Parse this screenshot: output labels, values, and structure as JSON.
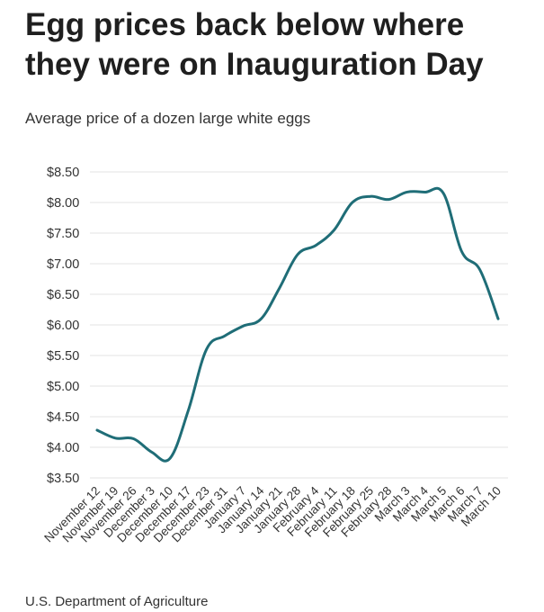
{
  "header": {
    "title": "Egg prices back below where they were on Inauguration Day",
    "subtitle": "Average price of a dozen large white eggs"
  },
  "footer": {
    "source": "U.S. Department of Agriculture"
  },
  "colors": {
    "line": "#1f6d77",
    "grid": "#e3e3e3",
    "text": "#333333"
  },
  "chart_data": {
    "type": "line",
    "title": "Egg prices back below where they were on Inauguration Day",
    "subtitle": "Average price of a dozen large white eggs",
    "xlabel": "",
    "ylabel": "",
    "ylim": [
      3.5,
      8.5
    ],
    "yticks": [
      3.5,
      4.0,
      4.5,
      5.0,
      5.5,
      6.0,
      6.5,
      7.0,
      7.5,
      8.0,
      8.5
    ],
    "ytick_labels": [
      "$3.50",
      "$4.00",
      "$4.50",
      "$5.00",
      "$5.50",
      "$6.00",
      "$6.50",
      "$7.00",
      "$7.50",
      "$8.00",
      "$8.50"
    ],
    "grid": true,
    "categories": [
      "November 12",
      "November 19",
      "November 26",
      "December 3",
      "December 10",
      "December 17",
      "December 23",
      "December 31",
      "January 7",
      "January 14",
      "January 21",
      "January 28",
      "February 4",
      "February 11",
      "February 18",
      "February 25",
      "February 28",
      "March 3",
      "March 4",
      "March 5",
      "March 6",
      "March 7",
      "March 10"
    ],
    "series": [
      {
        "name": "Average price",
        "values": [
          4.28,
          4.15,
          4.14,
          3.92,
          3.82,
          4.6,
          5.6,
          5.82,
          5.98,
          6.1,
          6.6,
          7.15,
          7.3,
          7.55,
          8.0,
          8.1,
          8.05,
          8.17,
          8.17,
          8.15,
          7.2,
          6.9,
          6.1
        ]
      }
    ]
  }
}
